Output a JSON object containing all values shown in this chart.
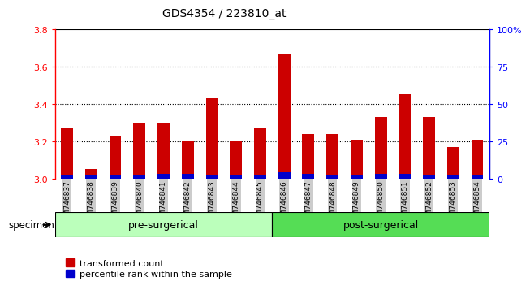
{
  "title": "GDS4354 / 223810_at",
  "samples": [
    "GSM746837",
    "GSM746838",
    "GSM746839",
    "GSM746840",
    "GSM746841",
    "GSM746842",
    "GSM746843",
    "GSM746844",
    "GSM746845",
    "GSM746846",
    "GSM746847",
    "GSM746848",
    "GSM746849",
    "GSM746850",
    "GSM746851",
    "GSM746852",
    "GSM746853",
    "GSM746854"
  ],
  "red_values": [
    3.27,
    3.05,
    3.23,
    3.3,
    3.3,
    3.2,
    3.43,
    3.2,
    3.27,
    3.67,
    3.24,
    3.24,
    3.21,
    3.33,
    3.45,
    3.33,
    3.17,
    3.21
  ],
  "blue_percentiles": [
    2,
    2,
    2,
    2,
    3,
    3,
    2,
    2,
    2,
    4,
    3,
    2,
    2,
    3,
    3,
    2,
    2,
    2
  ],
  "ymin": 3.0,
  "ymax": 3.8,
  "y2min": 0,
  "y2max": 100,
  "yticks": [
    3.0,
    3.2,
    3.4,
    3.6,
    3.8
  ],
  "y2ticks": [
    0,
    25,
    50,
    75,
    100
  ],
  "pre_surgical_count": 9,
  "pre_surgical_label": "pre-surgerical",
  "post_surgical_label": "post-surgerical",
  "bar_color_red": "#CC0000",
  "bar_color_blue": "#0000CC",
  "bg_pre": "#BBFFBB",
  "bg_post": "#55DD55",
  "specimen_label": "specimen",
  "legend_red": "transformed count",
  "legend_blue": "percentile rank within the sample",
  "bar_width": 0.5
}
